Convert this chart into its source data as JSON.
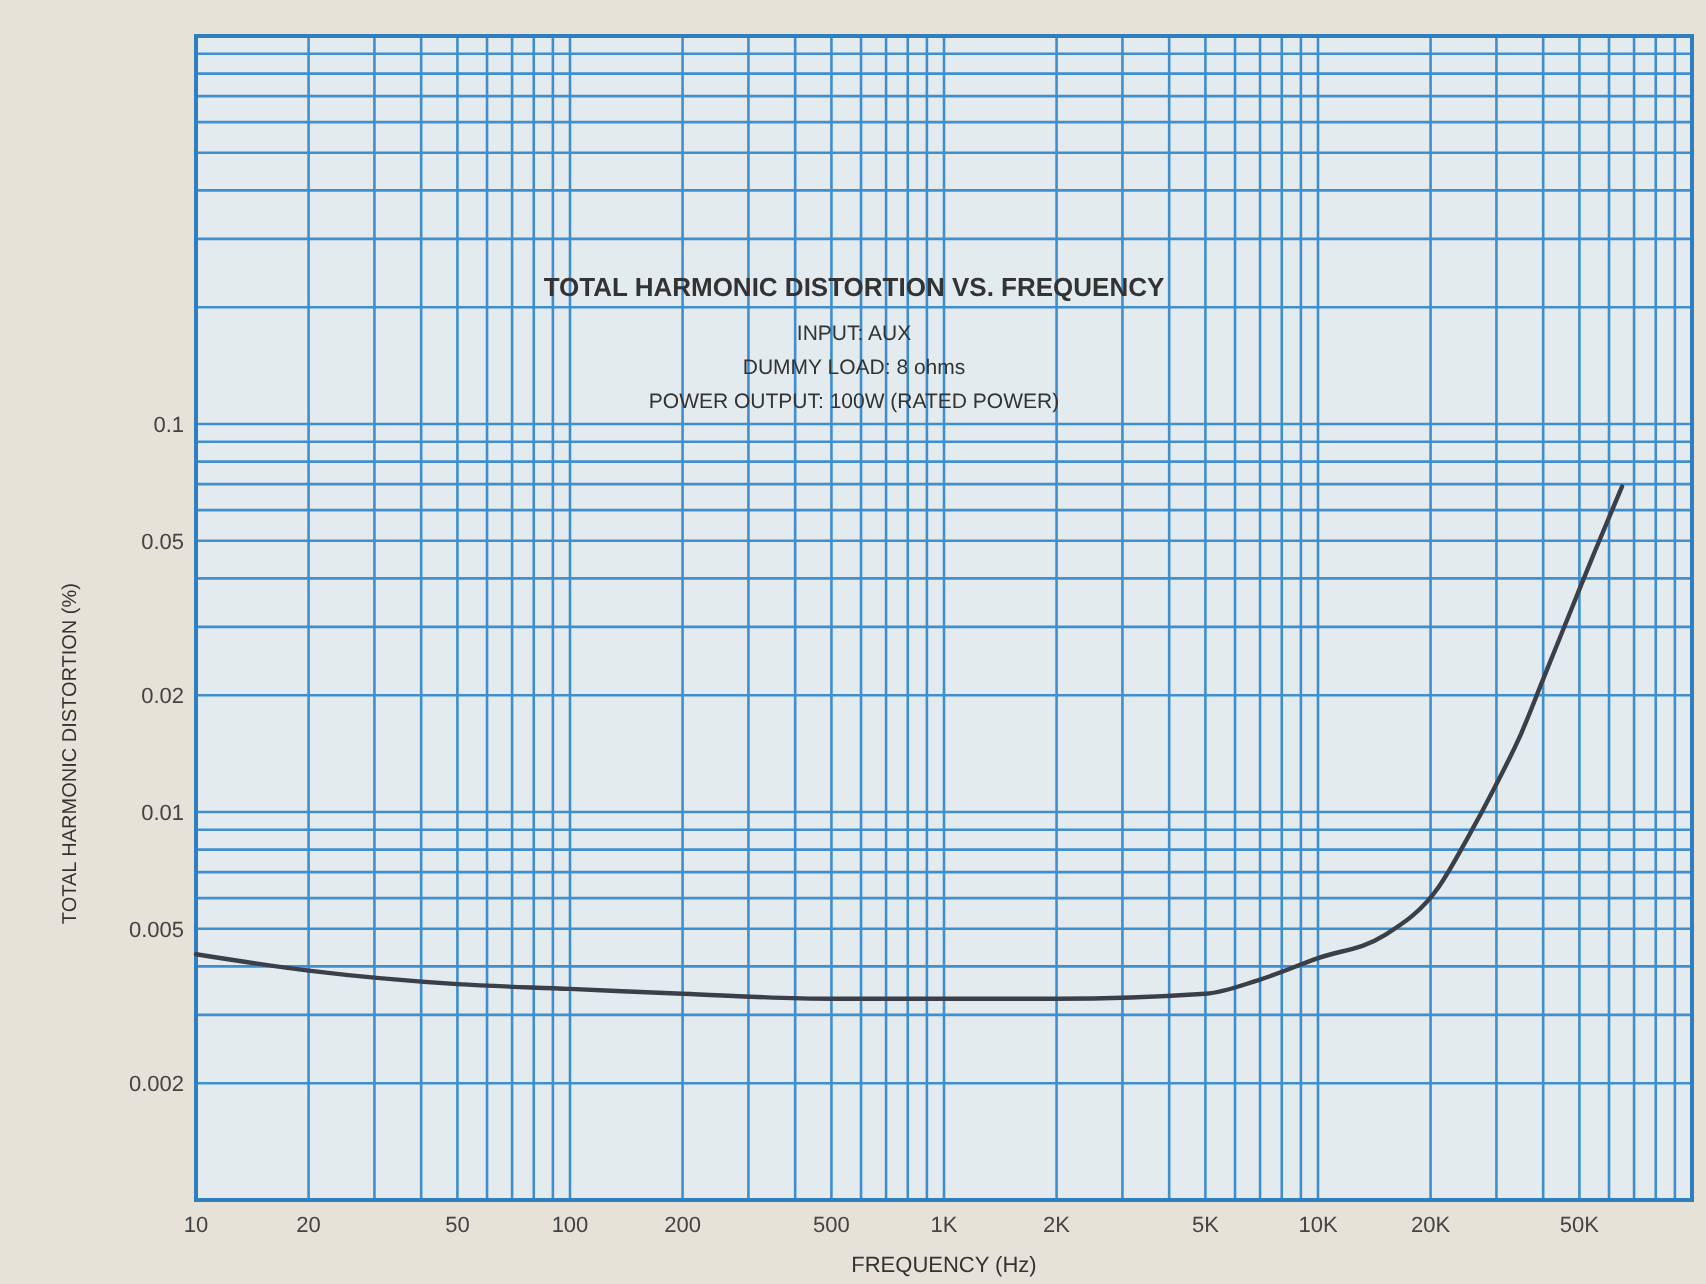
{
  "chart_data": {
    "type": "line",
    "title": "TOTAL HARMONIC DISTORTION VS. FREQUENCY",
    "annotations": [
      "INPUT: AUX",
      "DUMMY LOAD: 8 ohms",
      "POWER OUTPUT: 100W (RATED POWER)"
    ],
    "xlabel": "FREQUENCY (Hz)",
    "ylabel": "TOTAL HARMONIC DISTORTION (%)",
    "log": "xy",
    "grid": true,
    "marker": "none",
    "line_style": "solid",
    "xlim": [
      10,
      100000
    ],
    "xticks": [
      10,
      20,
      50,
      100,
      200,
      500,
      {
        "value": 1000,
        "label": "1K"
      },
      {
        "value": 2000,
        "label": "2K"
      },
      {
        "value": 5000,
        "label": "5K"
      },
      {
        "value": 10000,
        "label": "10K"
      },
      {
        "value": 20000,
        "label": "20K"
      },
      {
        "value": 50000,
        "label": "50K"
      }
    ],
    "ylim": [
      0.001,
      1
    ],
    "yticks": [
      {
        "value": 0.1,
        "label": "0.1"
      },
      0.05,
      0.02,
      {
        "value": 0.01,
        "label": "0.01"
      },
      0.005,
      0.002
    ],
    "x": [
      10,
      20,
      50,
      100,
      200,
      500,
      1000,
      2000,
      5000,
      7000,
      10000,
      15000,
      21000,
      25000,
      30000,
      35000,
      40000,
      48000,
      55000,
      65000
    ],
    "series": [
      {
        "color": "#3a3f4a",
        "values": [
          0.0043,
          0.0039,
          0.0036,
          0.0035,
          0.0034,
          0.0033,
          0.0033,
          0.0033,
          0.0034,
          0.0037,
          0.0042,
          0.0048,
          0.0064,
          0.0085,
          0.0118,
          0.016,
          0.022,
          0.034,
          0.047,
          0.069
        ]
      }
    ]
  }
}
